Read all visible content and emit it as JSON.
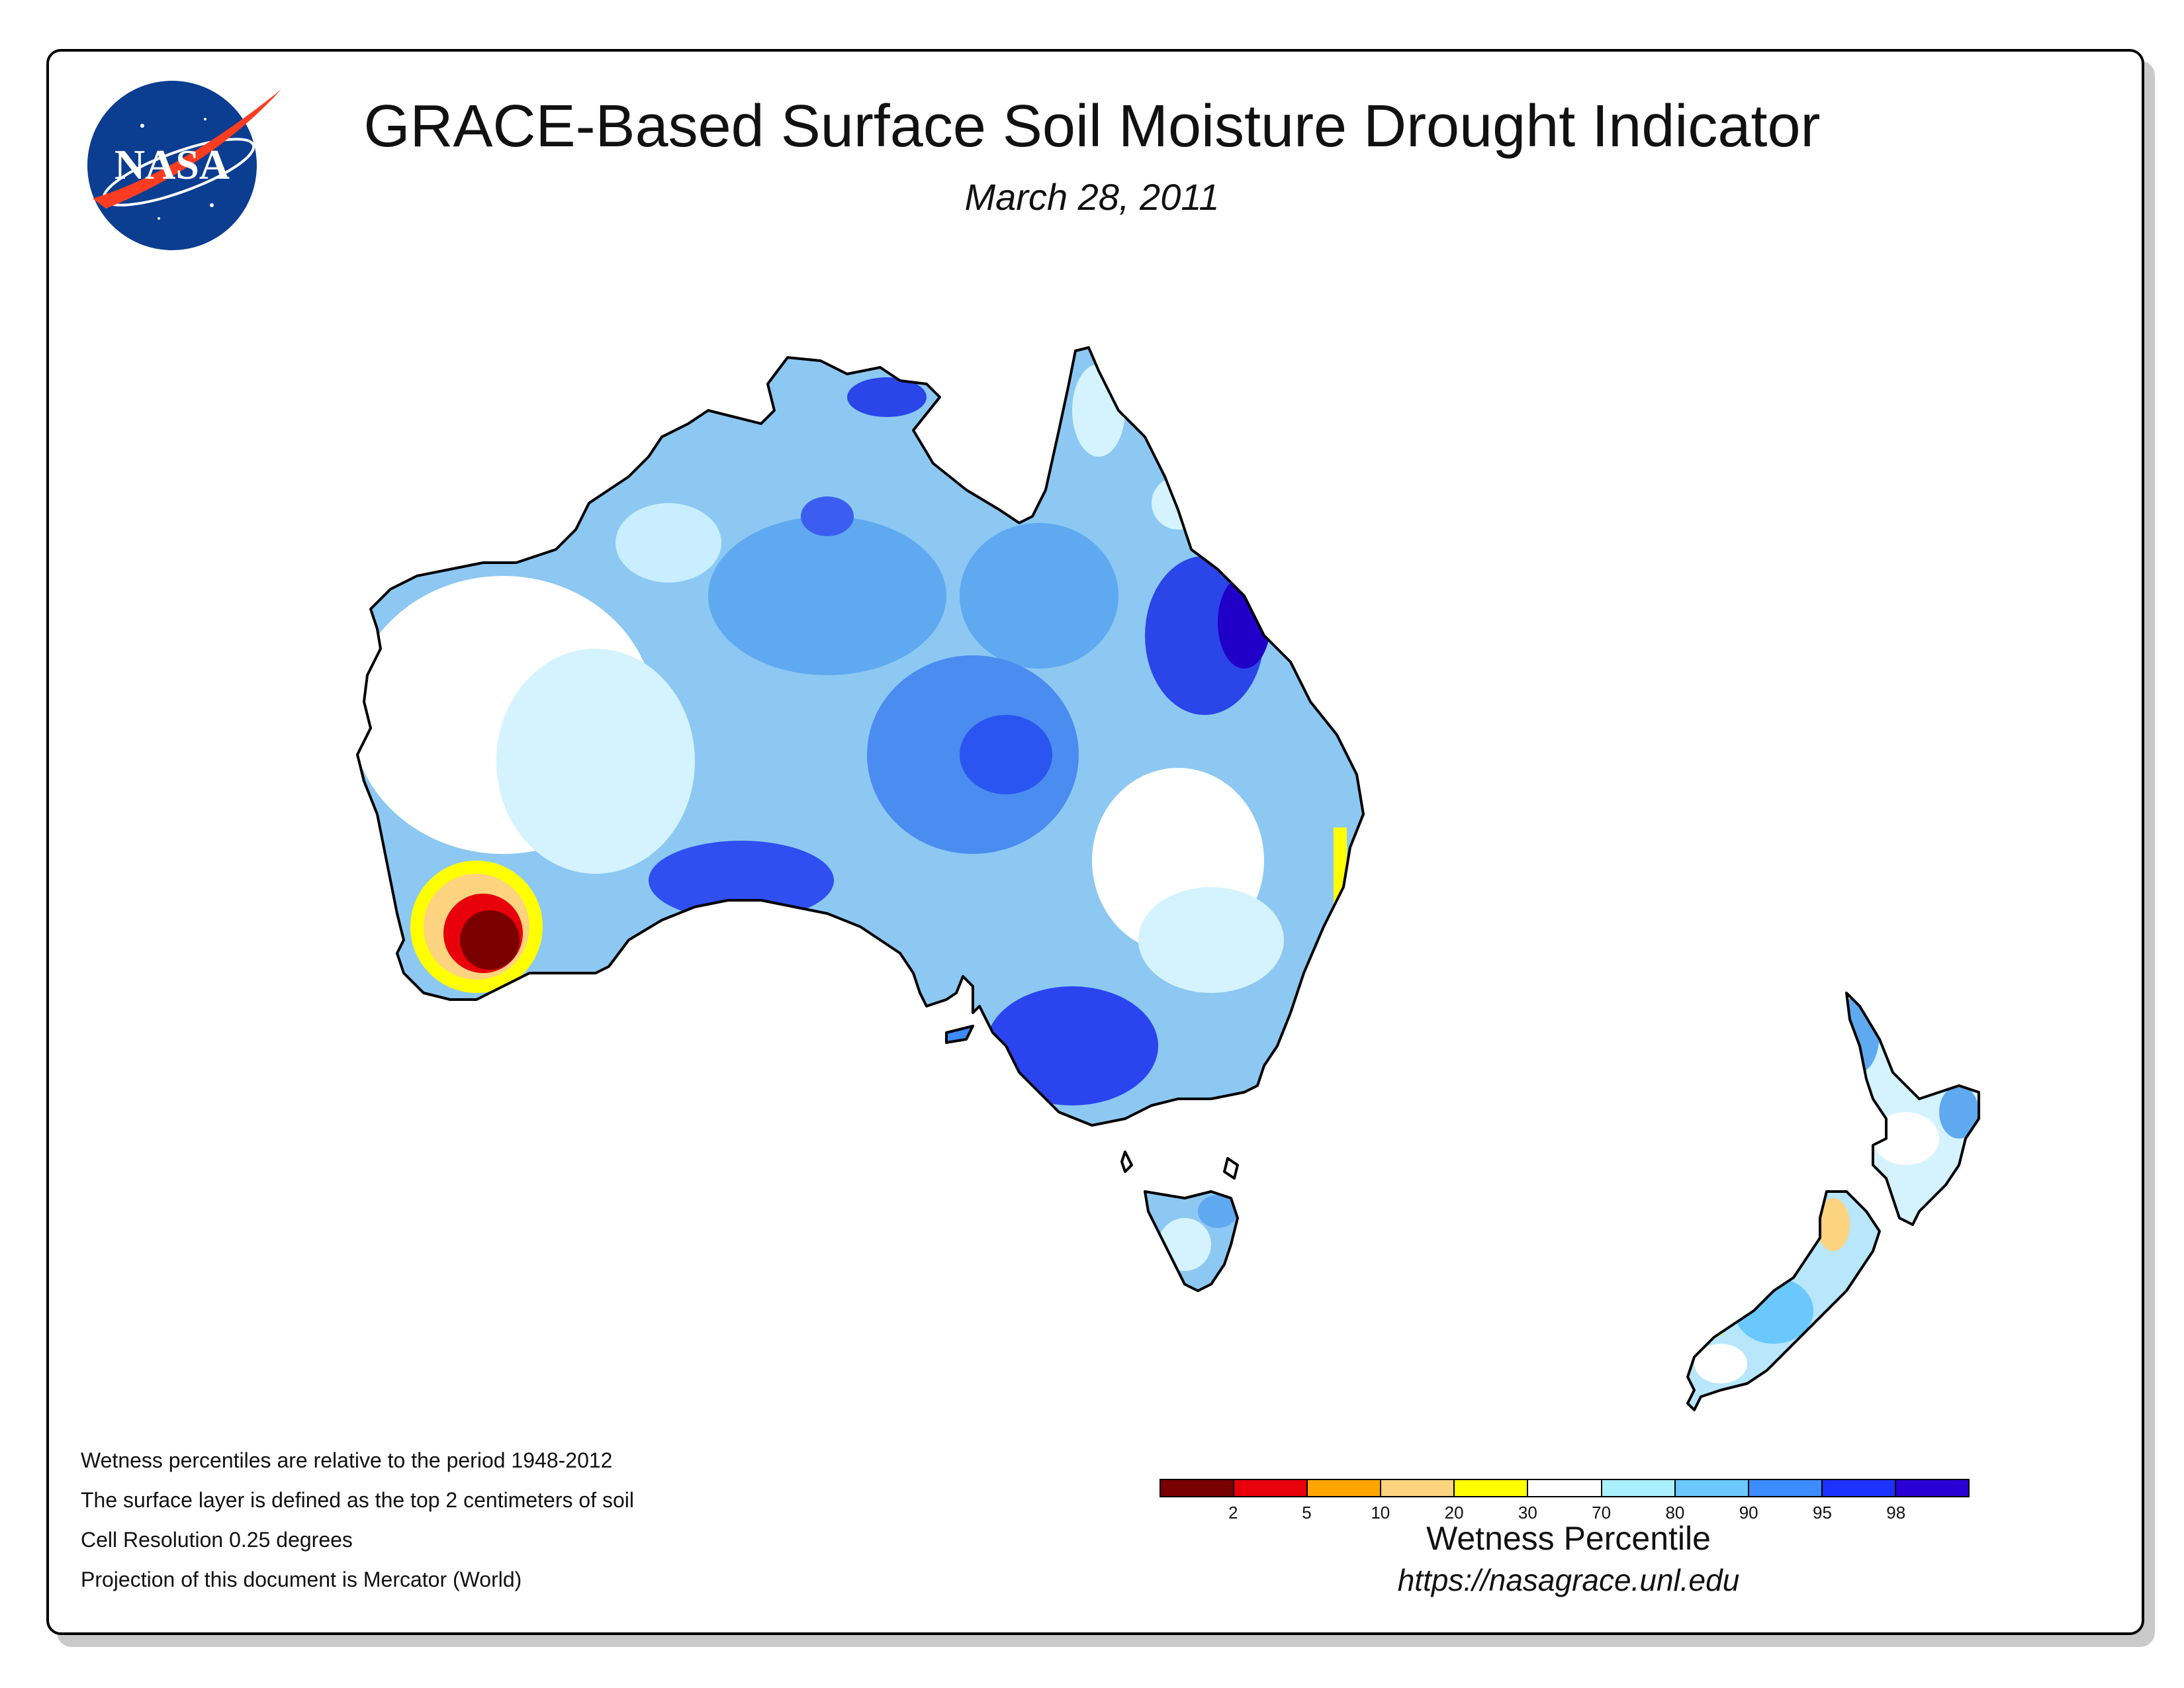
{
  "header": {
    "title": "GRACE-Based Surface Soil Moisture Drought Indicator",
    "date": "March 28, 2011"
  },
  "logo": {
    "text": "NASA",
    "icon": "nasa-meatball-logo-icon"
  },
  "notes": [
    "Wetness percentiles are relative to the period 1948-2012",
    "The surface layer is defined as the top 2 centimeters of soil",
    "Cell Resolution 0.25 degrees",
    "Projection of this document is Mercator (World)"
  ],
  "legend": {
    "title": "Wetness Percentile",
    "colors": [
      "#7a0000",
      "#e8000b",
      "#ffa500",
      "#fcd37f",
      "#ffff00",
      "#ffffff",
      "#aaf0ff",
      "#6ac8ff",
      "#3c8cff",
      "#1e32ff",
      "#2a00d4"
    ],
    "ticks": [
      "2",
      "5",
      "10",
      "20",
      "30",
      "70",
      "80",
      "90",
      "95",
      "98"
    ]
  },
  "map": {
    "regions": [
      "Australia",
      "Tasmania",
      "New Zealand"
    ],
    "colors": {
      "outline": "#000000",
      "base": "#8cc8f2",
      "dry_extreme": "#7a0000",
      "dry_severe": "#e8000b",
      "dry_moderate": "#ffa500",
      "dry_mild": "#fcd37f",
      "dry_abnormal": "#ffff00",
      "near_normal": "#ffffff",
      "wet_light": "#aaf0ff",
      "wet_mid": "#6ac8ff",
      "wet_high": "#3c8cff",
      "wet_very_high": "#1e32ff"
    }
  },
  "footer": {
    "url": "https://nasagrace.unl.edu"
  }
}
